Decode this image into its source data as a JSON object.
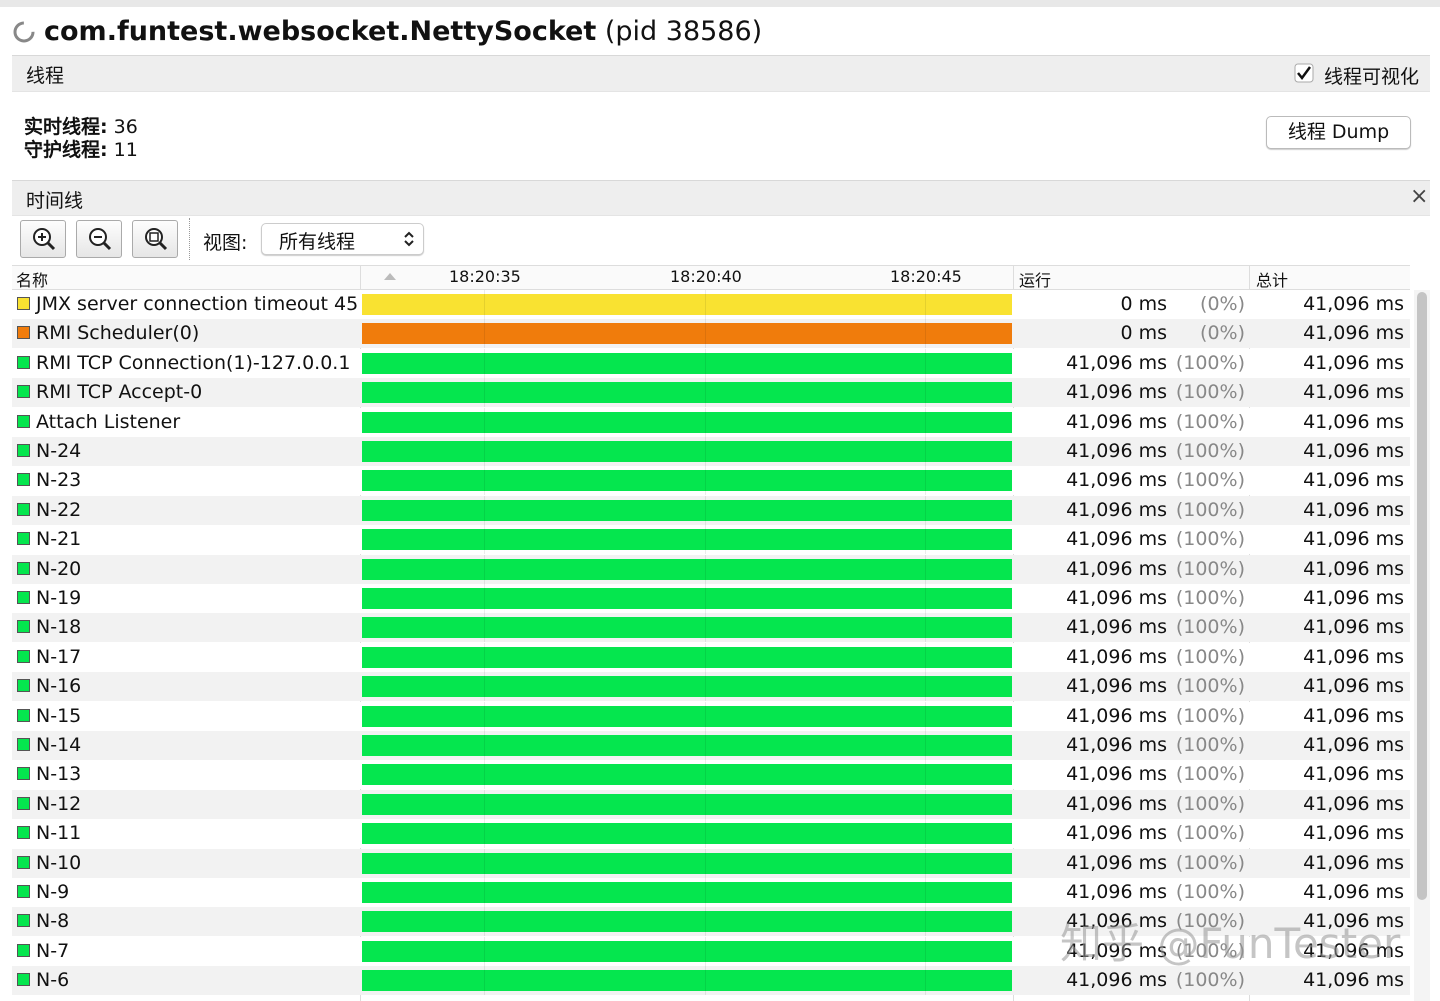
{
  "window": {
    "title": "com.funtest.websocket.NettySocket",
    "pid": "(pid 38586)"
  },
  "threads_panel": {
    "title": "线程",
    "visualize_label": "线程可视化",
    "visualize_checked": true,
    "live_label": "实时线程:",
    "live_value": "36",
    "daemon_label": "守护线程:",
    "daemon_value": "11",
    "dump_button": "线程 Dump"
  },
  "timeline": {
    "title": "时间线",
    "view_label": "视图:",
    "view_value": "所有线程",
    "columns": {
      "name": "名称",
      "running": "运行",
      "total": "总计"
    },
    "time_ticks": [
      "18:20:35",
      "18:20:40",
      "18:20:45"
    ],
    "rows": [
      {
        "name": "JMX server connection timeout 45",
        "color": "#f9e231",
        "running": "0 ms",
        "percent": "(0%)",
        "total": "41,096 ms"
      },
      {
        "name": "RMI Scheduler(0)",
        "color": "#f07c0c",
        "running": "0 ms",
        "percent": "(0%)",
        "total": "41,096 ms"
      },
      {
        "name": "RMI TCP Connection(1)-127.0.0.1",
        "color": "#05e64e",
        "running": "41,096 ms",
        "percent": "(100%)",
        "total": "41,096 ms"
      },
      {
        "name": "RMI TCP Accept-0",
        "color": "#05e64e",
        "running": "41,096 ms",
        "percent": "(100%)",
        "total": "41,096 ms"
      },
      {
        "name": "Attach Listener",
        "color": "#05e64e",
        "running": "41,096 ms",
        "percent": "(100%)",
        "total": "41,096 ms"
      },
      {
        "name": "N-24",
        "color": "#05e64e",
        "running": "41,096 ms",
        "percent": "(100%)",
        "total": "41,096 ms"
      },
      {
        "name": "N-23",
        "color": "#05e64e",
        "running": "41,096 ms",
        "percent": "(100%)",
        "total": "41,096 ms"
      },
      {
        "name": "N-22",
        "color": "#05e64e",
        "running": "41,096 ms",
        "percent": "(100%)",
        "total": "41,096 ms"
      },
      {
        "name": "N-21",
        "color": "#05e64e",
        "running": "41,096 ms",
        "percent": "(100%)",
        "total": "41,096 ms"
      },
      {
        "name": "N-20",
        "color": "#05e64e",
        "running": "41,096 ms",
        "percent": "(100%)",
        "total": "41,096 ms"
      },
      {
        "name": "N-19",
        "color": "#05e64e",
        "running": "41,096 ms",
        "percent": "(100%)",
        "total": "41,096 ms"
      },
      {
        "name": "N-18",
        "color": "#05e64e",
        "running": "41,096 ms",
        "percent": "(100%)",
        "total": "41,096 ms"
      },
      {
        "name": "N-17",
        "color": "#05e64e",
        "running": "41,096 ms",
        "percent": "(100%)",
        "total": "41,096 ms"
      },
      {
        "name": "N-16",
        "color": "#05e64e",
        "running": "41,096 ms",
        "percent": "(100%)",
        "total": "41,096 ms"
      },
      {
        "name": "N-15",
        "color": "#05e64e",
        "running": "41,096 ms",
        "percent": "(100%)",
        "total": "41,096 ms"
      },
      {
        "name": "N-14",
        "color": "#05e64e",
        "running": "41,096 ms",
        "percent": "(100%)",
        "total": "41,096 ms"
      },
      {
        "name": "N-13",
        "color": "#05e64e",
        "running": "41,096 ms",
        "percent": "(100%)",
        "total": "41,096 ms"
      },
      {
        "name": "N-12",
        "color": "#05e64e",
        "running": "41,096 ms",
        "percent": "(100%)",
        "total": "41,096 ms"
      },
      {
        "name": "N-11",
        "color": "#05e64e",
        "running": "41,096 ms",
        "percent": "(100%)",
        "total": "41,096 ms"
      },
      {
        "name": "N-10",
        "color": "#05e64e",
        "running": "41,096 ms",
        "percent": "(100%)",
        "total": "41,096 ms"
      },
      {
        "name": "N-9",
        "color": "#05e64e",
        "running": "41,096 ms",
        "percent": "(100%)",
        "total": "41,096 ms"
      },
      {
        "name": "N-8",
        "color": "#05e64e",
        "running": "41,096 ms",
        "percent": "(100%)",
        "total": "41,096 ms"
      },
      {
        "name": "N-7",
        "color": "#05e64e",
        "running": "41,096 ms",
        "percent": "(100%)",
        "total": "41,096 ms"
      },
      {
        "name": "N-6",
        "color": "#05e64e",
        "running": "41,096 ms",
        "percent": "(100%)",
        "total": "41,096 ms"
      }
    ]
  },
  "watermark": "知乎 @FunTester"
}
